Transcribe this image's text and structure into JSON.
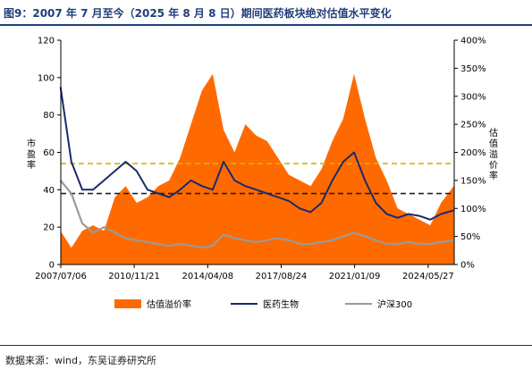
{
  "title": "图9：2007 年 7 月至今（2025 年 8 月 8 日）期间医药板块绝对估值水平变化",
  "source": "数据来源：wind，东吴证券研究所",
  "colors": {
    "premium": "#ff6a00",
    "pharma": "#1a2a6c",
    "hs300": "#9a9a9a",
    "yellow_line": "#d4b800",
    "black_line": "#222222",
    "title_text": "#1f3f7a"
  },
  "chart_data": {
    "type": "line",
    "x_tick_labels": [
      "2007/07/06",
      "2010/11/21",
      "2014/04/08",
      "2017/08/24",
      "2021/01/09",
      "2024/05/27"
    ],
    "xlim": [
      "2007/07/06",
      "2025/08/08"
    ],
    "ylabel_left": "市盈率",
    "ylabel_right": "估值溢价率",
    "ylim_left": [
      0,
      120
    ],
    "ylim_right": [
      0,
      400
    ],
    "yticks_left": [
      "0",
      "20",
      "40",
      "60",
      "80",
      "100",
      "120"
    ],
    "yticks_right": [
      "0%",
      "50%",
      "100%",
      "150%",
      "200%",
      "250%",
      "300%",
      "350%",
      "400%"
    ],
    "legend": [
      "估值溢价率",
      "医药生物",
      "沪深300"
    ],
    "reference_lines": [
      {
        "axis": "left",
        "value": 54
      },
      {
        "axis": "left",
        "value": 38
      }
    ],
    "x": [
      "2007/07",
      "2008/01",
      "2008/07",
      "2009/01",
      "2009/07",
      "2010/01",
      "2010/07",
      "2011/01",
      "2011/07",
      "2012/01",
      "2012/07",
      "2013/01",
      "2013/07",
      "2014/01",
      "2014/07",
      "2015/01",
      "2015/07",
      "2016/01",
      "2016/07",
      "2017/01",
      "2017/07",
      "2018/01",
      "2018/07",
      "2019/01",
      "2019/07",
      "2020/01",
      "2020/07",
      "2021/01",
      "2021/07",
      "2022/01",
      "2022/07",
      "2023/01",
      "2023/07",
      "2024/01",
      "2024/07",
      "2025/01",
      "2025/08"
    ],
    "series": [
      {
        "name": "估值溢价率",
        "axis": "right",
        "values": [
          60,
          30,
          60,
          70,
          60,
          120,
          140,
          110,
          120,
          140,
          150,
          190,
          250,
          310,
          340,
          240,
          200,
          250,
          230,
          220,
          190,
          160,
          150,
          140,
          170,
          220,
          260,
          340,
          260,
          190,
          150,
          100,
          90,
          80,
          70,
          110,
          140
        ]
      },
      {
        "name": "医药生物",
        "axis": "left",
        "values": [
          95,
          55,
          40,
          40,
          45,
          50,
          55,
          50,
          40,
          38,
          36,
          40,
          45,
          42,
          40,
          55,
          45,
          42,
          40,
          38,
          36,
          34,
          30,
          28,
          33,
          45,
          55,
          60,
          45,
          33,
          27,
          25,
          27,
          26,
          24,
          27,
          29
        ]
      },
      {
        "name": "沪深300",
        "axis": "left",
        "values": [
          45,
          38,
          22,
          17,
          20,
          17,
          14,
          13,
          12,
          11,
          10,
          11,
          10,
          9,
          10,
          16,
          14,
          13,
          12,
          13,
          14,
          13,
          11,
          11,
          12,
          13,
          15,
          17,
          15,
          13,
          11,
          11,
          12,
          11,
          11,
          12,
          13
        ]
      }
    ]
  }
}
